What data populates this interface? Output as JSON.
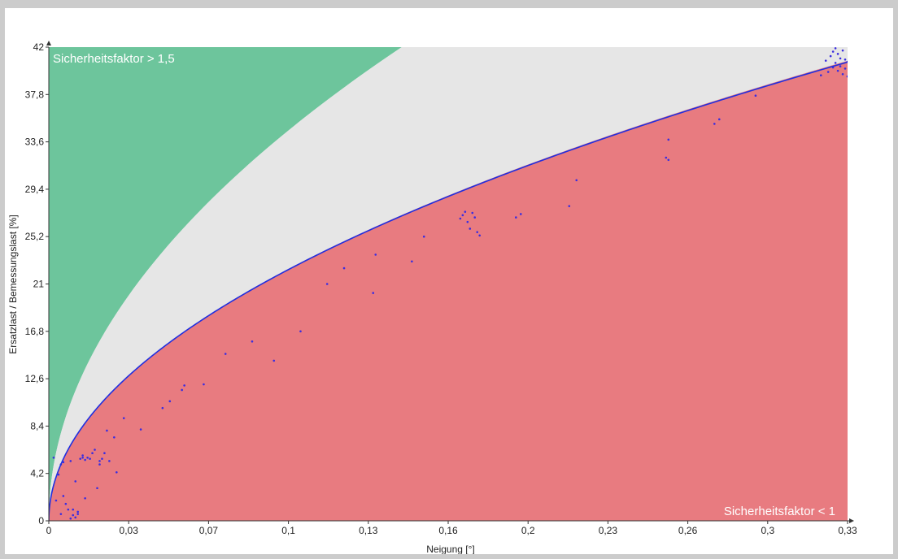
{
  "chart_data": {
    "type": "scatter",
    "xlabel": "Neigung [°]",
    "ylabel": "Ersatzlast / Bemessungslast [%]",
    "xlim": [
      0,
      0.33
    ],
    "ylim": [
      0,
      42
    ],
    "x_ticks": [
      "0",
      "0,03",
      "0,07",
      "0,1",
      "0,13",
      "0,16",
      "0,2",
      "0,23",
      "0,26",
      "0,3",
      "0,33"
    ],
    "x_tick_values": [
      0,
      0.033,
      0.066,
      0.099,
      0.132,
      0.165,
      0.198,
      0.231,
      0.264,
      0.297,
      0.33
    ],
    "y_ticks": [
      "0",
      "4,2",
      "8,4",
      "12,6",
      "16,8",
      "21",
      "25,2",
      "29,4",
      "33,6",
      "37,8",
      "42"
    ],
    "y_tick_values": [
      0,
      4.2,
      8.4,
      12.6,
      16.8,
      21,
      25.2,
      29.4,
      33.6,
      37.8,
      42
    ],
    "grid": false,
    "legend": "none",
    "regions": [
      {
        "label": "Sicherheitsfaktor > 1,5",
        "color": "#6dc59c",
        "position": "top-left"
      },
      {
        "label": "",
        "color": "#e6e6e6"
      },
      {
        "label": "Sicherheitsfaktor < 1",
        "color": "#e87b80",
        "position": "bottom-right"
      }
    ],
    "fit_color": "#1f2fe0",
    "point_color": "#3a2de0",
    "points": [
      [
        0.002,
        5.6
      ],
      [
        0.003,
        1.8
      ],
      [
        0.004,
        4.1
      ],
      [
        0.005,
        0.6
      ],
      [
        0.005,
        5.0
      ],
      [
        0.006,
        5.2
      ],
      [
        0.006,
        2.2
      ],
      [
        0.007,
        1.5
      ],
      [
        0.008,
        1.0
      ],
      [
        0.009,
        5.3
      ],
      [
        0.009,
        0.2
      ],
      [
        0.01,
        0.5
      ],
      [
        0.01,
        1.0
      ],
      [
        0.011,
        0.3
      ],
      [
        0.011,
        3.5
      ],
      [
        0.012,
        0.6
      ],
      [
        0.012,
        0.8
      ],
      [
        0.013,
        5.5
      ],
      [
        0.014,
        5.6
      ],
      [
        0.014,
        5.8
      ],
      [
        0.015,
        5.4
      ],
      [
        0.015,
        2.0
      ],
      [
        0.016,
        5.6
      ],
      [
        0.017,
        5.5
      ],
      [
        0.018,
        6.0
      ],
      [
        0.019,
        6.3
      ],
      [
        0.02,
        2.9
      ],
      [
        0.021,
        5.0
      ],
      [
        0.021,
        5.3
      ],
      [
        0.022,
        5.5
      ],
      [
        0.023,
        6.0
      ],
      [
        0.024,
        8.0
      ],
      [
        0.025,
        5.3
      ],
      [
        0.027,
        7.4
      ],
      [
        0.028,
        4.3
      ],
      [
        0.031,
        9.1
      ],
      [
        0.038,
        8.1
      ],
      [
        0.047,
        10.0
      ],
      [
        0.05,
        10.6
      ],
      [
        0.055,
        11.6
      ],
      [
        0.056,
        12.0
      ],
      [
        0.064,
        12.1
      ],
      [
        0.073,
        14.8
      ],
      [
        0.084,
        15.9
      ],
      [
        0.093,
        14.2
      ],
      [
        0.104,
        16.8
      ],
      [
        0.115,
        21.0
      ],
      [
        0.122,
        22.4
      ],
      [
        0.134,
        20.2
      ],
      [
        0.135,
        23.6
      ],
      [
        0.15,
        23.0
      ],
      [
        0.155,
        25.2
      ],
      [
        0.17,
        26.8
      ],
      [
        0.171,
        27.1
      ],
      [
        0.172,
        27.4
      ],
      [
        0.173,
        26.5
      ],
      [
        0.174,
        25.9
      ],
      [
        0.175,
        27.3
      ],
      [
        0.176,
        26.9
      ],
      [
        0.177,
        25.6
      ],
      [
        0.178,
        25.3
      ],
      [
        0.193,
        26.9
      ],
      [
        0.195,
        27.2
      ],
      [
        0.215,
        27.9
      ],
      [
        0.218,
        30.2
      ],
      [
        0.255,
        32.2
      ],
      [
        0.256,
        33.8
      ],
      [
        0.256,
        32.0
      ],
      [
        0.275,
        35.2
      ],
      [
        0.277,
        35.6
      ],
      [
        0.292,
        37.7
      ],
      [
        0.319,
        39.5
      ],
      [
        0.321,
        40.8
      ],
      [
        0.322,
        39.8
      ],
      [
        0.323,
        41.2
      ],
      [
        0.324,
        41.6
      ],
      [
        0.324,
        40.2
      ],
      [
        0.325,
        41.9
      ],
      [
        0.325,
        40.6
      ],
      [
        0.326,
        41.4
      ],
      [
        0.326,
        39.9
      ],
      [
        0.327,
        41.0
      ],
      [
        0.327,
        40.3
      ],
      [
        0.328,
        41.7
      ],
      [
        0.328,
        39.6
      ],
      [
        0.329,
        40.9
      ],
      [
        0.329,
        40.1
      ],
      [
        0.33,
        39.4
      ],
      [
        0.33,
        40.7
      ],
      [
        0.331,
        40.0
      ],
      [
        0.331,
        41.3
      ],
      [
        0.332,
        40.5
      ],
      [
        0.332,
        39.7
      ]
    ]
  }
}
